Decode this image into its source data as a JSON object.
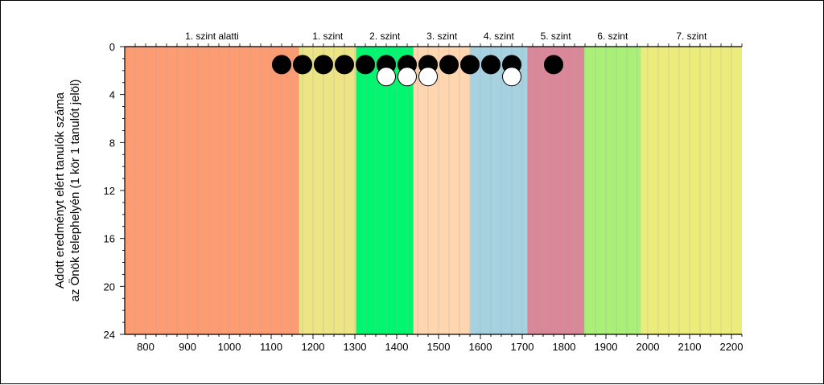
{
  "chart_data": {
    "type": "scatter",
    "title": "",
    "xlabel": "",
    "ylabel_lines": [
      "Adott eredményt elért tanulók száma",
      "az Önök telephelyén (1 kör 1 tanulót jelöl)"
    ],
    "xlim": [
      750,
      2225
    ],
    "ylim": [
      0,
      24
    ],
    "y_inverted": true,
    "x_ticks": [
      800,
      900,
      1000,
      1100,
      1200,
      1300,
      1400,
      1500,
      1600,
      1700,
      1800,
      1900,
      2000,
      2100,
      2200
    ],
    "y_ticks": [
      0,
      4,
      8,
      12,
      16,
      20,
      24
    ],
    "grid": "vertical lines every 25 points",
    "bands": [
      {
        "label": "1. szint alatti",
        "from": 750,
        "to": 1167,
        "color": "#fd9b72"
      },
      {
        "label": "1. szint",
        "from": 1167,
        "to": 1303,
        "color": "#ede485"
      },
      {
        "label": "2. szint",
        "from": 1303,
        "to": 1440,
        "color": "#00f66e"
      },
      {
        "label": "3. szint",
        "from": 1440,
        "to": 1576,
        "color": "#ffd6b0"
      },
      {
        "label": "4. szint",
        "from": 1576,
        "to": 1712,
        "color": "#a6d1e0"
      },
      {
        "label": "5. szint",
        "from": 1712,
        "to": 1848,
        "color": "#d98799"
      },
      {
        "label": "6. szint",
        "from": 1848,
        "to": 1984,
        "color": "#a9ef78"
      },
      {
        "label": "7. szint",
        "from": 1984,
        "to": 2225,
        "color": "#ecec7c"
      }
    ],
    "series": [
      {
        "marker": "filled-black-circle",
        "points": [
          {
            "x": 1125,
            "y": 1
          },
          {
            "x": 1175,
            "y": 1
          },
          {
            "x": 1225,
            "y": 1
          },
          {
            "x": 1275,
            "y": 1
          },
          {
            "x": 1325,
            "y": 1
          },
          {
            "x": 1375,
            "y": 1
          },
          {
            "x": 1425,
            "y": 1
          },
          {
            "x": 1475,
            "y": 1
          },
          {
            "x": 1525,
            "y": 1
          },
          {
            "x": 1575,
            "y": 1
          },
          {
            "x": 1625,
            "y": 1
          },
          {
            "x": 1675,
            "y": 1
          },
          {
            "x": 1775,
            "y": 1
          }
        ]
      },
      {
        "marker": "white-circle",
        "points": [
          {
            "x": 1375,
            "y": 2
          },
          {
            "x": 1425,
            "y": 2
          },
          {
            "x": 1475,
            "y": 2
          },
          {
            "x": 1675,
            "y": 2
          }
        ]
      }
    ]
  }
}
